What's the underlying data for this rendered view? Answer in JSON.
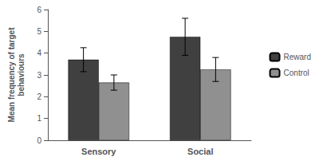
{
  "chart_data": {
    "type": "bar",
    "categories": [
      "Sensory",
      "Social"
    ],
    "series": [
      {
        "name": "Reward",
        "color": "#404040",
        "values": [
          3.7,
          4.75
        ],
        "errors": [
          0.55,
          0.85
        ]
      },
      {
        "name": "Control",
        "color": "#909090",
        "values": [
          2.65,
          3.25
        ],
        "errors": [
          0.35,
          0.55
        ]
      }
    ],
    "ylabel": "Mean frequency of target\nbehaviours",
    "ylim": [
      0,
      6
    ],
    "yticks": [
      0,
      1,
      2,
      3,
      4,
      5,
      6
    ],
    "grid": false,
    "legend": "right"
  }
}
